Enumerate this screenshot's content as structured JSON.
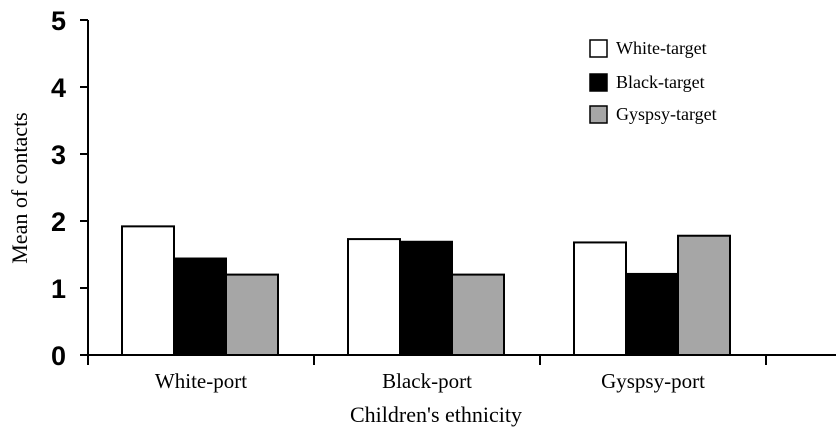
{
  "chart_data": {
    "type": "bar",
    "title": "",
    "xlabel": "Children's ethnicity",
    "ylabel": "Mean of contacts",
    "categories": [
      "White-port",
      "Black-port",
      "Gyspsy-port"
    ],
    "series": [
      {
        "name": "White-target",
        "values": [
          1.92,
          1.73,
          1.68
        ]
      },
      {
        "name": "Black-target",
        "values": [
          1.44,
          1.69,
          1.21
        ]
      },
      {
        "name": "Gyspsy-target",
        "values": [
          1.2,
          1.2,
          1.78
        ]
      }
    ],
    "ylim": [
      0,
      5
    ],
    "yticks": [
      0,
      1,
      2,
      3,
      4,
      5
    ],
    "grid": false,
    "legend_position": "top-right",
    "series_colors": [
      "#ffffff",
      "#000000",
      "#a6a6a6"
    ]
  }
}
